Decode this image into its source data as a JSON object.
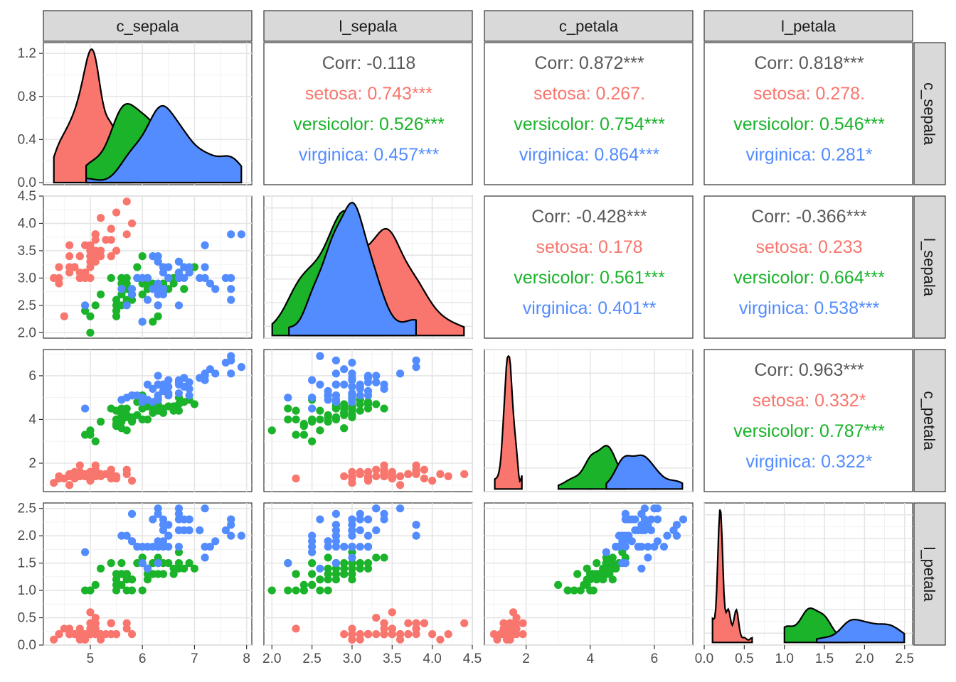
{
  "colors": {
    "setosa": "#F8766D",
    "versicolor": "#1AB32A",
    "virginica": "#538CFF",
    "overall": "#595959"
  },
  "variables": [
    "c_sepala",
    "l_sepala",
    "c_petala",
    "l_petala"
  ],
  "axes": {
    "c_sepala": {
      "range": [
        4.1,
        8.1
      ],
      "ticks": [
        5,
        6,
        7,
        8
      ],
      "tick_labels": [
        "5",
        "6",
        "7",
        "8"
      ]
    },
    "l_sepala": {
      "range": [
        1.9,
        4.5
      ],
      "ticks": [
        2.0,
        2.5,
        3.0,
        3.5,
        4.0,
        4.5
      ],
      "tick_labels": [
        "2.0",
        "2.5",
        "3.0",
        "3.5",
        "4.0",
        "4.5"
      ]
    },
    "c_petala": {
      "range": [
        0.7,
        7.2
      ],
      "ticks": [
        2,
        4,
        6
      ],
      "tick_labels": [
        "2",
        "4",
        "6"
      ]
    },
    "l_petala": {
      "range": [
        0.0,
        2.6
      ],
      "ticks": [
        0.0,
        0.5,
        1.0,
        1.5,
        2.0,
        2.5
      ],
      "tick_labels": [
        "0.0",
        "0.5",
        "1.0",
        "1.5",
        "2.0",
        "2.5"
      ]
    }
  },
  "density_axis": {
    "range": [
      -0.02,
      1.3
    ],
    "ticks": [
      0.0,
      0.4,
      0.8,
      1.2
    ],
    "tick_labels": [
      "0.0",
      "0.4",
      "0.8",
      "1.2"
    ]
  },
  "chart_data": {
    "type": "scatter",
    "title": "",
    "description_type": "scatterplot matrix (pairs plot) with density diagonals and correlation text",
    "series": [
      {
        "name": "setosa",
        "points": [
          [
            5.1,
            3.5,
            1.4,
            0.2
          ],
          [
            4.9,
            3.0,
            1.4,
            0.2
          ],
          [
            4.7,
            3.2,
            1.3,
            0.2
          ],
          [
            4.6,
            3.1,
            1.5,
            0.2
          ],
          [
            5.0,
            3.6,
            1.4,
            0.2
          ],
          [
            5.4,
            3.9,
            1.7,
            0.4
          ],
          [
            4.6,
            3.4,
            1.4,
            0.3
          ],
          [
            5.0,
            3.4,
            1.5,
            0.2
          ],
          [
            4.4,
            2.9,
            1.4,
            0.2
          ],
          [
            4.9,
            3.1,
            1.5,
            0.1
          ],
          [
            5.4,
            3.7,
            1.5,
            0.2
          ],
          [
            4.8,
            3.4,
            1.6,
            0.2
          ],
          [
            4.8,
            3.0,
            1.4,
            0.1
          ],
          [
            4.3,
            3.0,
            1.1,
            0.1
          ],
          [
            5.8,
            4.0,
            1.2,
            0.2
          ],
          [
            5.7,
            4.4,
            1.5,
            0.4
          ],
          [
            5.4,
            3.9,
            1.3,
            0.4
          ],
          [
            5.1,
            3.5,
            1.4,
            0.3
          ],
          [
            5.7,
            3.8,
            1.7,
            0.3
          ],
          [
            5.1,
            3.8,
            1.5,
            0.3
          ],
          [
            5.4,
            3.4,
            1.7,
            0.2
          ],
          [
            5.1,
            3.7,
            1.5,
            0.4
          ],
          [
            4.6,
            3.6,
            1.0,
            0.2
          ],
          [
            5.1,
            3.3,
            1.7,
            0.5
          ],
          [
            4.8,
            3.4,
            1.9,
            0.2
          ],
          [
            5.0,
            3.0,
            1.6,
            0.2
          ],
          [
            5.0,
            3.4,
            1.6,
            0.4
          ],
          [
            5.2,
            3.5,
            1.5,
            0.2
          ],
          [
            5.2,
            3.4,
            1.4,
            0.2
          ],
          [
            4.7,
            3.2,
            1.6,
            0.2
          ],
          [
            4.8,
            3.1,
            1.6,
            0.2
          ],
          [
            5.4,
            3.4,
            1.5,
            0.4
          ],
          [
            5.2,
            4.1,
            1.5,
            0.1
          ],
          [
            5.5,
            4.2,
            1.4,
            0.2
          ],
          [
            4.9,
            3.1,
            1.5,
            0.2
          ],
          [
            5.0,
            3.2,
            1.2,
            0.2
          ],
          [
            5.5,
            3.5,
            1.3,
            0.2
          ],
          [
            4.9,
            3.6,
            1.4,
            0.1
          ],
          [
            4.4,
            3.0,
            1.3,
            0.2
          ],
          [
            5.1,
            3.4,
            1.5,
            0.2
          ],
          [
            5.0,
            3.5,
            1.3,
            0.3
          ],
          [
            4.5,
            2.3,
            1.3,
            0.3
          ],
          [
            4.4,
            3.2,
            1.3,
            0.2
          ],
          [
            5.0,
            3.5,
            1.6,
            0.6
          ],
          [
            5.1,
            3.8,
            1.9,
            0.4
          ],
          [
            4.8,
            3.0,
            1.4,
            0.3
          ],
          [
            5.1,
            3.8,
            1.6,
            0.2
          ],
          [
            4.6,
            3.2,
            1.4,
            0.2
          ],
          [
            5.3,
            3.7,
            1.5,
            0.2
          ],
          [
            5.0,
            3.3,
            1.4,
            0.2
          ]
        ]
      },
      {
        "name": "versicolor",
        "points": [
          [
            7.0,
            3.2,
            4.7,
            1.4
          ],
          [
            6.4,
            3.2,
            4.5,
            1.5
          ],
          [
            6.9,
            3.1,
            4.9,
            1.5
          ],
          [
            5.5,
            2.3,
            4.0,
            1.3
          ],
          [
            6.5,
            2.8,
            4.6,
            1.5
          ],
          [
            5.7,
            2.8,
            4.5,
            1.3
          ],
          [
            6.3,
            3.3,
            4.7,
            1.6
          ],
          [
            4.9,
            2.4,
            3.3,
            1.0
          ],
          [
            6.6,
            2.9,
            4.6,
            1.3
          ],
          [
            5.2,
            2.7,
            3.9,
            1.4
          ],
          [
            5.0,
            2.0,
            3.5,
            1.0
          ],
          [
            5.9,
            3.0,
            4.2,
            1.5
          ],
          [
            6.0,
            2.2,
            4.0,
            1.0
          ],
          [
            6.1,
            2.9,
            4.7,
            1.4
          ],
          [
            5.6,
            2.9,
            3.6,
            1.3
          ],
          [
            6.7,
            3.1,
            4.4,
            1.4
          ],
          [
            5.6,
            3.0,
            4.5,
            1.5
          ],
          [
            5.8,
            2.7,
            4.1,
            1.0
          ],
          [
            6.2,
            2.2,
            4.5,
            1.5
          ],
          [
            5.6,
            2.5,
            3.9,
            1.1
          ],
          [
            5.9,
            3.2,
            4.8,
            1.8
          ],
          [
            6.1,
            2.8,
            4.0,
            1.3
          ],
          [
            6.3,
            2.5,
            4.9,
            1.5
          ],
          [
            6.1,
            2.8,
            4.7,
            1.2
          ],
          [
            6.4,
            2.9,
            4.3,
            1.3
          ],
          [
            6.6,
            3.0,
            4.4,
            1.4
          ],
          [
            6.8,
            2.8,
            4.8,
            1.4
          ],
          [
            6.7,
            3.0,
            5.0,
            1.7
          ],
          [
            6.0,
            2.9,
            4.5,
            1.5
          ],
          [
            5.7,
            2.6,
            3.5,
            1.0
          ],
          [
            5.5,
            2.4,
            3.8,
            1.1
          ],
          [
            5.5,
            2.4,
            3.7,
            1.0
          ],
          [
            5.8,
            2.7,
            3.9,
            1.2
          ],
          [
            6.0,
            2.7,
            5.1,
            1.6
          ],
          [
            5.4,
            3.0,
            4.5,
            1.5
          ],
          [
            6.0,
            3.4,
            4.5,
            1.6
          ],
          [
            6.7,
            3.1,
            4.7,
            1.5
          ],
          [
            6.3,
            2.3,
            4.4,
            1.3
          ],
          [
            5.6,
            3.0,
            4.1,
            1.3
          ],
          [
            5.5,
            2.5,
            4.0,
            1.3
          ],
          [
            5.5,
            2.6,
            4.4,
            1.2
          ],
          [
            6.1,
            3.0,
            4.6,
            1.4
          ],
          [
            5.8,
            2.6,
            4.0,
            1.2
          ],
          [
            5.0,
            2.3,
            3.3,
            1.0
          ],
          [
            5.6,
            2.7,
            4.2,
            1.3
          ],
          [
            5.7,
            3.0,
            4.2,
            1.2
          ],
          [
            5.7,
            2.9,
            4.2,
            1.3
          ],
          [
            6.2,
            2.9,
            4.3,
            1.3
          ],
          [
            5.1,
            2.5,
            3.0,
            1.1
          ],
          [
            5.7,
            2.8,
            4.1,
            1.3
          ]
        ]
      },
      {
        "name": "virginica",
        "points": [
          [
            6.3,
            3.3,
            6.0,
            2.5
          ],
          [
            5.8,
            2.7,
            5.1,
            1.9
          ],
          [
            7.1,
            3.0,
            5.9,
            2.1
          ],
          [
            6.3,
            2.9,
            5.6,
            1.8
          ],
          [
            6.5,
            3.0,
            5.8,
            2.2
          ],
          [
            7.6,
            3.0,
            6.6,
            2.1
          ],
          [
            4.9,
            2.5,
            4.5,
            1.7
          ],
          [
            7.3,
            2.9,
            6.3,
            1.8
          ],
          [
            6.7,
            2.5,
            5.8,
            1.8
          ],
          [
            7.2,
            3.6,
            6.1,
            2.5
          ],
          [
            6.5,
            3.2,
            5.1,
            2.0
          ],
          [
            6.4,
            2.7,
            5.3,
            1.9
          ],
          [
            6.8,
            3.0,
            5.5,
            2.1
          ],
          [
            5.7,
            2.5,
            5.0,
            2.0
          ],
          [
            5.8,
            2.8,
            5.1,
            2.4
          ],
          [
            6.4,
            3.2,
            5.3,
            2.3
          ],
          [
            6.5,
            3.0,
            5.5,
            1.8
          ],
          [
            7.7,
            3.8,
            6.7,
            2.2
          ],
          [
            7.7,
            2.6,
            6.9,
            2.3
          ],
          [
            6.0,
            2.2,
            5.0,
            1.5
          ],
          [
            6.9,
            3.2,
            5.7,
            2.3
          ],
          [
            5.6,
            2.8,
            4.9,
            2.0
          ],
          [
            7.7,
            2.8,
            6.7,
            2.0
          ],
          [
            6.3,
            2.7,
            4.9,
            1.8
          ],
          [
            6.7,
            3.3,
            5.7,
            2.1
          ],
          [
            7.2,
            3.2,
            6.0,
            1.8
          ],
          [
            6.2,
            2.8,
            4.8,
            1.8
          ],
          [
            6.1,
            3.0,
            4.9,
            1.8
          ],
          [
            6.4,
            2.8,
            5.6,
            2.1
          ],
          [
            7.2,
            3.0,
            5.8,
            1.6
          ],
          [
            7.4,
            2.8,
            6.1,
            1.9
          ],
          [
            7.9,
            3.8,
            6.4,
            2.0
          ],
          [
            6.4,
            2.8,
            5.6,
            2.2
          ],
          [
            6.3,
            2.8,
            5.1,
            1.5
          ],
          [
            6.1,
            2.6,
            5.6,
            1.4
          ],
          [
            7.7,
            3.0,
            6.1,
            2.3
          ],
          [
            6.3,
            3.4,
            5.6,
            2.4
          ],
          [
            6.4,
            3.1,
            5.5,
            1.8
          ],
          [
            6.0,
            3.0,
            4.8,
            1.8
          ],
          [
            6.9,
            3.1,
            5.4,
            2.1
          ],
          [
            6.7,
            3.1,
            5.6,
            2.4
          ],
          [
            6.9,
            3.1,
            5.1,
            2.3
          ],
          [
            5.8,
            2.7,
            5.1,
            1.9
          ],
          [
            6.8,
            3.2,
            5.9,
            2.3
          ],
          [
            6.7,
            3.3,
            5.7,
            2.5
          ],
          [
            6.7,
            3.0,
            5.2,
            2.3
          ],
          [
            6.3,
            2.5,
            5.0,
            1.9
          ],
          [
            6.5,
            3.0,
            5.2,
            2.0
          ],
          [
            6.2,
            3.4,
            5.4,
            2.3
          ],
          [
            5.9,
            3.0,
            5.1,
            1.8
          ]
        ]
      }
    ],
    "correlations": {
      "0_1": [
        "Corr: -0.118",
        "setosa: 0.743***",
        "versicolor: 0.526***",
        "virginica: 0.457***"
      ],
      "0_2": [
        "Corr: 0.872***",
        "setosa: 0.267.",
        "versicolor: 0.754***",
        "virginica: 0.864***"
      ],
      "0_3": [
        "Corr: 0.818***",
        "setosa: 0.278.",
        "versicolor: 0.546***",
        "virginica: 0.281*"
      ],
      "1_2": [
        "Corr: -0.428***",
        "setosa: 0.178",
        "versicolor: 0.561***",
        "virginica: 0.401**"
      ],
      "1_3": [
        "Corr: -0.366***",
        "setosa: 0.233",
        "versicolor: 0.664***",
        "virginica: 0.538***"
      ],
      "2_3": [
        "Corr: 0.963***",
        "setosa: 0.332*",
        "versicolor: 0.787***",
        "virginica: 0.322*"
      ]
    },
    "legend": "none",
    "grid": true
  }
}
